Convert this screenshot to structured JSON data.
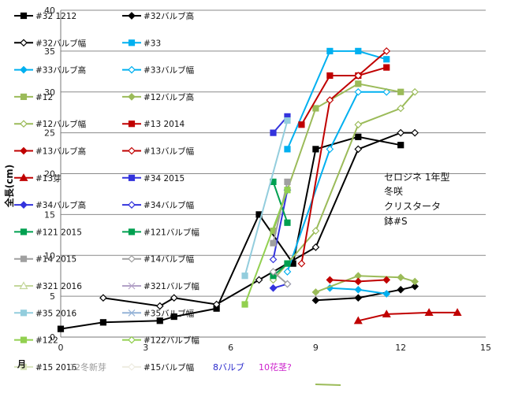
{
  "chart_data": {
    "type": "line",
    "ylabel": "全長(cm)",
    "xlabel": "月",
    "xlim": [
      0,
      15
    ],
    "ylim": [
      0,
      40
    ],
    "xticks": [
      "0",
      "3",
      "6",
      "9",
      "12",
      "15"
    ],
    "yticks": [
      "0",
      "5",
      "10",
      "15",
      "20",
      "25",
      "30",
      "35",
      "40"
    ],
    "grid": "horizontal",
    "legend_position": "left",
    "annotation_lines": [
      "セロジネ 1年型",
      "冬咲",
      "クリスタータ",
      "鉢#S"
    ],
    "notes": [
      {
        "text": "12冬新芽",
        "color": "#9a9a9a"
      },
      {
        "text": "8バルブ",
        "color": "#2a2acc"
      },
      {
        "text": "10花茎?",
        "color": "#cc22cc"
      }
    ],
    "series": [
      {
        "name": "#32 1212",
        "color": "#000000",
        "marker": "square",
        "filled": true,
        "x": [
          0,
          1.5,
          3.5,
          4,
          5.5,
          7,
          8.2,
          9,
          10.5,
          12
        ],
        "y": [
          1,
          1.8,
          2,
          2.5,
          3.5,
          15,
          9,
          23,
          24.5,
          23.5
        ]
      },
      {
        "name": "#32バルブ高",
        "color": "#000000",
        "marker": "diamond",
        "filled": true,
        "x": [
          9,
          10.5,
          12,
          12.5
        ],
        "y": [
          4.5,
          4.8,
          5.8,
          6.2
        ]
      },
      {
        "name": "#32バルブ幅",
        "color": "#000000",
        "marker": "diamond",
        "filled": false,
        "x": [
          1.5,
          3.5,
          4,
          5.5,
          7,
          9,
          10.5,
          12,
          12.5
        ],
        "y": [
          4.8,
          3.8,
          4.8,
          4,
          7,
          11,
          23,
          25,
          25
        ]
      },
      {
        "name": "#33",
        "color": "#00b0f0",
        "marker": "square",
        "filled": true,
        "x": [
          8,
          9.5,
          10.5,
          11.5
        ],
        "y": [
          23,
          35,
          35,
          34
        ]
      },
      {
        "name": "#33バルブ高",
        "color": "#00b0f0",
        "marker": "diamond",
        "filled": true,
        "x": [
          9.5,
          10.5,
          11.5
        ],
        "y": [
          6,
          5.8,
          5.3
        ]
      },
      {
        "name": "#33バルブ幅",
        "color": "#00b0f0",
        "marker": "diamond",
        "filled": false,
        "x": [
          8,
          9.5,
          10.5,
          11.5
        ],
        "y": [
          8,
          23,
          30,
          30
        ]
      },
      {
        "name": "#12",
        "color": "#9bbb59",
        "marker": "square",
        "filled": true,
        "x": [
          7.5,
          9,
          10.5,
          12
        ],
        "y": [
          13,
          28,
          31,
          30
        ]
      },
      {
        "name": "#12バルブ高",
        "color": "#9bbb59",
        "marker": "diamond",
        "filled": true,
        "x": [
          9,
          10.5,
          12,
          12.5
        ],
        "y": [
          5.5,
          7.5,
          7.3,
          6.8
        ]
      },
      {
        "name": "#12バルブ幅",
        "color": "#9bbb59",
        "marker": "diamond",
        "filled": false,
        "x": [
          7.5,
          9,
          10.5,
          12,
          12.5
        ],
        "y": [
          7,
          13,
          26,
          28,
          30
        ]
      },
      {
        "name": "#13 2014",
        "color": "#c00000",
        "marker": "square",
        "filled": true,
        "x": [
          8.5,
          9.5,
          10.5,
          11.5
        ],
        "y": [
          26,
          32,
          32,
          33
        ]
      },
      {
        "name": "#13バルブ高",
        "color": "#c00000",
        "marker": "diamond",
        "filled": true,
        "x": [
          9.5,
          10.5,
          11.5
        ],
        "y": [
          7,
          6.8,
          7
        ]
      },
      {
        "name": "#13バルブ幅",
        "color": "#c00000",
        "marker": "diamond",
        "filled": false,
        "x": [
          8.5,
          9.5,
          10.5,
          11.5
        ],
        "y": [
          9,
          29,
          32,
          35
        ]
      },
      {
        "name": "#13芽",
        "color": "#c00000",
        "marker": "triangle",
        "filled": true,
        "x": [
          10.5,
          11.5,
          13,
          14
        ],
        "y": [
          2,
          2.8,
          3,
          3
        ]
      },
      {
        "name": "#34 2015",
        "color": "#3333dd",
        "marker": "square",
        "filled": true,
        "x": [
          7.5,
          8
        ],
        "y": [
          25,
          27
        ]
      },
      {
        "name": "#34バルブ高",
        "color": "#3333dd",
        "marker": "diamond",
        "filled": true,
        "x": [
          7.5,
          8
        ],
        "y": [
          6,
          6.5
        ]
      },
      {
        "name": "#34バルブ幅",
        "color": "#3333dd",
        "marker": "diamond",
        "filled": false,
        "x": [
          7.5,
          8
        ],
        "y": [
          9.5,
          18
        ]
      },
      {
        "name": "#121 2015",
        "color": "#00a050",
        "marker": "square",
        "filled": true,
        "x": [
          7.5,
          8
        ],
        "y": [
          19,
          14
        ]
      },
      {
        "name": "#121バルブ幅",
        "color": "#00a050",
        "marker": "square",
        "filled": true,
        "x": [
          7.5,
          8
        ],
        "y": [
          7.5,
          9
        ]
      },
      {
        "name": "#14 2015",
        "color": "#a0a0a0",
        "marker": "square",
        "filled": true,
        "x": [
          7.5,
          8
        ],
        "y": [
          11.5,
          19
        ]
      },
      {
        "name": "#14バルブ幅",
        "color": "#a0a0a0",
        "marker": "diamond",
        "filled": false,
        "x": [
          7.5,
          8
        ],
        "y": [
          8,
          6.5
        ]
      },
      {
        "name": "#321 2016",
        "color": "#c4d79b",
        "marker": "triangle",
        "filled": false,
        "x": [],
        "y": []
      },
      {
        "name": "#321バルブ幅",
        "color": "#b3a2c7",
        "marker": "cross",
        "filled": false,
        "x": [],
        "y": []
      },
      {
        "name": "#35 2016",
        "color": "#93cddd",
        "marker": "square",
        "filled": true,
        "x": [
          6.5,
          8
        ],
        "y": [
          7.5,
          26.5
        ]
      },
      {
        "name": "#35バルブ幅",
        "color": "#95b3d7",
        "marker": "cross",
        "filled": false,
        "x": [],
        "y": []
      },
      {
        "name": "#122",
        "color": "#92d050",
        "marker": "square",
        "filled": true,
        "x": [
          6.5,
          8
        ],
        "y": [
          4,
          18
        ]
      },
      {
        "name": "#122バルブ幅",
        "color": "#92d050",
        "marker": "diamond",
        "filled": false,
        "x": [],
        "y": []
      },
      {
        "name": "#15 2016",
        "color": "#d8e4bc",
        "marker": "square",
        "filled": true,
        "x": [],
        "y": []
      },
      {
        "name": "#15バルブ幅",
        "color": "#eeece1",
        "marker": "diamond",
        "filled": false,
        "x": [],
        "y": []
      }
    ]
  }
}
